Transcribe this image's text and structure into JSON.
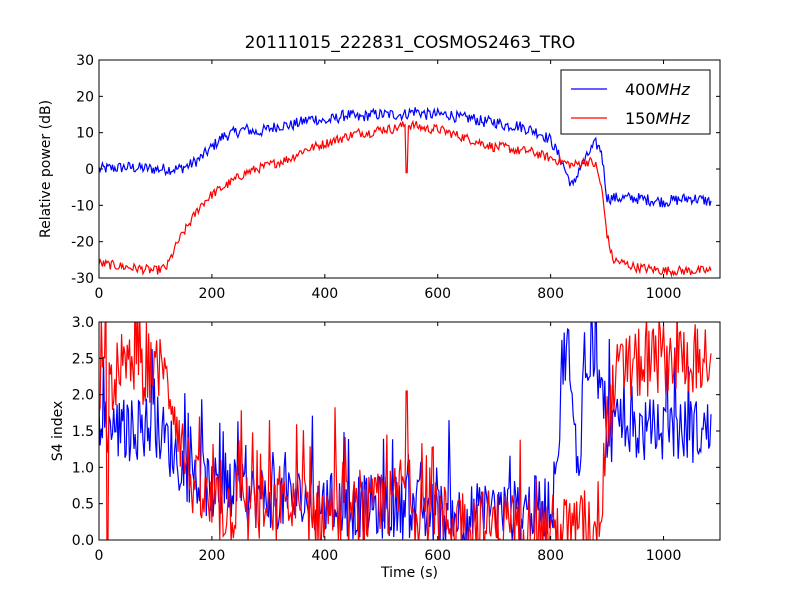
{
  "figure_title": "20111015_222831_COSMOS2463_TRO",
  "colors": {
    "series_400": "#0000ff",
    "series_150": "#ff0000",
    "axes": "#000000",
    "background": "#ffffff"
  },
  "chart_data": [
    {
      "type": "line",
      "title": "20111015_222831_COSMOS2463_TRO",
      "xlabel": "",
      "ylabel": "Relative power (dB)",
      "xlim": [
        0,
        1100
      ],
      "ylim": [
        -30,
        30
      ],
      "x_ticks": [
        0,
        200,
        400,
        600,
        800,
        1000
      ],
      "y_ticks": [
        -30,
        -20,
        -10,
        0,
        10,
        20,
        30
      ],
      "grid": false,
      "legend_position": "top-right",
      "series": [
        {
          "name": "400MHz",
          "color": "#0000ff",
          "style": "noisy",
          "noise": 1.6,
          "x": [
            0,
            50,
            100,
            140,
            160,
            180,
            200,
            220,
            240,
            260,
            280,
            300,
            320,
            340,
            360,
            380,
            400,
            420,
            440,
            460,
            480,
            500,
            520,
            540,
            560,
            580,
            600,
            620,
            640,
            660,
            680,
            700,
            720,
            740,
            760,
            780,
            800,
            810,
            820,
            830,
            840,
            850,
            860,
            870,
            880,
            890,
            900,
            950,
            1000,
            1050,
            1085
          ],
          "values": [
            0,
            0.5,
            0,
            0,
            1,
            3,
            6,
            9,
            10,
            11,
            10,
            11,
            12,
            12,
            13,
            14,
            13,
            14,
            15,
            14,
            15,
            15,
            15,
            15,
            16,
            15,
            15,
            15,
            14,
            14,
            13,
            13,
            12,
            12,
            11,
            10,
            8,
            5,
            2,
            -2,
            -5,
            0,
            2,
            5,
            7,
            5,
            -8,
            -8,
            -9,
            -8,
            -9
          ]
        },
        {
          "name": "150MHz",
          "color": "#ff0000",
          "style": "noisy",
          "noise": 1.3,
          "x": [
            0,
            50,
            100,
            120,
            140,
            160,
            180,
            200,
            220,
            240,
            260,
            280,
            300,
            320,
            340,
            360,
            380,
            400,
            420,
            440,
            460,
            480,
            500,
            520,
            540,
            560,
            580,
            600,
            620,
            640,
            660,
            680,
            700,
            720,
            740,
            760,
            780,
            800,
            820,
            840,
            860,
            870,
            880,
            890,
            900,
            910,
            950,
            1000,
            1050,
            1085
          ],
          "values": [
            -26,
            -27,
            -28,
            -27,
            -20,
            -15,
            -10,
            -7,
            -5,
            -3,
            -1,
            0,
            1,
            2,
            3,
            5,
            6,
            7,
            8,
            9,
            10,
            10,
            11,
            11,
            12,
            12,
            11,
            11,
            10,
            9,
            8,
            7,
            6,
            6,
            5,
            5,
            4,
            3,
            2,
            1,
            2,
            2,
            1,
            -5,
            -18,
            -25,
            -27,
            -28,
            -28,
            -28
          ],
          "spike": {
            "x": 545,
            "y": -1
          }
        }
      ]
    },
    {
      "type": "line",
      "title": "",
      "xlabel": "Time (s)",
      "ylabel": "S4 index",
      "xlim": [
        0,
        1100
      ],
      "ylim": [
        0,
        3
      ],
      "x_ticks": [
        0,
        200,
        400,
        600,
        800,
        1000
      ],
      "y_ticks": [
        0.0,
        0.5,
        1.0,
        1.5,
        2.0,
        2.5,
        3.0
      ],
      "grid": false,
      "series": [
        {
          "name": "400MHz",
          "color": "#0000ff",
          "style": "noisy",
          "noise": 0.45,
          "x": [
            0,
            50,
            100,
            150,
            180,
            200,
            250,
            300,
            350,
            400,
            450,
            500,
            550,
            600,
            650,
            700,
            750,
            800,
            810,
            820,
            830,
            840,
            850,
            860,
            870,
            880,
            890,
            900,
            950,
            1000,
            1050,
            1085
          ],
          "values": [
            1.6,
            1.5,
            1.6,
            1.0,
            0.8,
            0.7,
            0.6,
            0.6,
            0.55,
            0.5,
            0.45,
            0.45,
            0.45,
            0.35,
            0.35,
            0.35,
            0.4,
            0.5,
            0.6,
            2.4,
            2.8,
            1.5,
            1.0,
            2.5,
            2.6,
            2.6,
            2.0,
            1.5,
            1.5,
            1.5,
            1.5,
            1.5
          ]
        },
        {
          "name": "150MHz",
          "color": "#ff0000",
          "style": "noisy",
          "noise": 0.5,
          "x": [
            0,
            50,
            100,
            130,
            150,
            170,
            200,
            250,
            300,
            350,
            400,
            450,
            500,
            520,
            540,
            560,
            600,
            650,
            700,
            750,
            800,
            850,
            880,
            890,
            900,
            920,
            950,
            1000,
            1050,
            1085
          ],
          "values": [
            2.2,
            2.3,
            2.4,
            2.0,
            1.2,
            0.7,
            0.4,
            0.45,
            0.4,
            0.4,
            0.35,
            0.35,
            0.4,
            0.5,
            0.8,
            0.45,
            0.3,
            0.25,
            0.2,
            0.2,
            0.15,
            0.15,
            0.2,
            0.6,
            1.6,
            2.3,
            2.4,
            2.5,
            2.5,
            2.5
          ],
          "spike": {
            "x": 545,
            "y": 2.05
          },
          "dip": {
            "x": 15,
            "y": 0.0
          }
        }
      ]
    }
  ]
}
